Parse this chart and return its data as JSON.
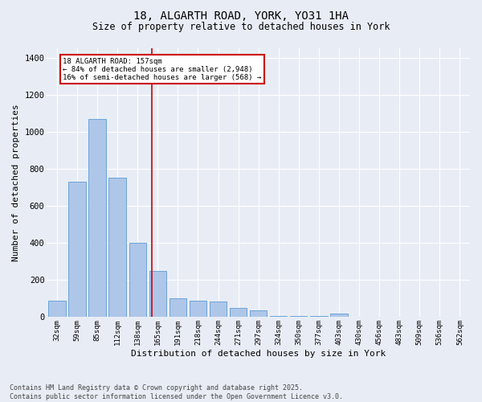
{
  "title_line1": "18, ALGARTH ROAD, YORK, YO31 1HA",
  "title_line2": "Size of property relative to detached houses in York",
  "xlabel": "Distribution of detached houses by size in York",
  "ylabel": "Number of detached properties",
  "categories": [
    "32sqm",
    "59sqm",
    "85sqm",
    "112sqm",
    "138sqm",
    "165sqm",
    "191sqm",
    "218sqm",
    "244sqm",
    "271sqm",
    "297sqm",
    "324sqm",
    "350sqm",
    "377sqm",
    "403sqm",
    "430sqm",
    "456sqm",
    "483sqm",
    "509sqm",
    "536sqm",
    "562sqm"
  ],
  "values": [
    90,
    730,
    1070,
    750,
    400,
    250,
    100,
    90,
    85,
    50,
    35,
    5,
    5,
    5,
    20,
    3,
    2,
    2,
    2,
    2,
    2
  ],
  "bar_color": "#aec6e8",
  "bar_edge_color": "#5b9bd5",
  "vline_color": "#cc0000",
  "annotation_line1": "18 ALGARTH ROAD: 157sqm",
  "annotation_line2": "← 84% of detached houses are smaller (2,948)",
  "annotation_line3": "16% of semi-detached houses are larger (568) →",
  "annotation_box_color": "#cc0000",
  "ylim": [
    0,
    1450
  ],
  "yticks": [
    0,
    200,
    400,
    600,
    800,
    1000,
    1200,
    1400
  ],
  "bg_color": "#e8edf5",
  "plot_bg_color": "#e8edf5",
  "footer_line1": "Contains HM Land Registry data © Crown copyright and database right 2025.",
  "footer_line2": "Contains public sector information licensed under the Open Government Licence v3.0.",
  "grid_color": "#ffffff"
}
